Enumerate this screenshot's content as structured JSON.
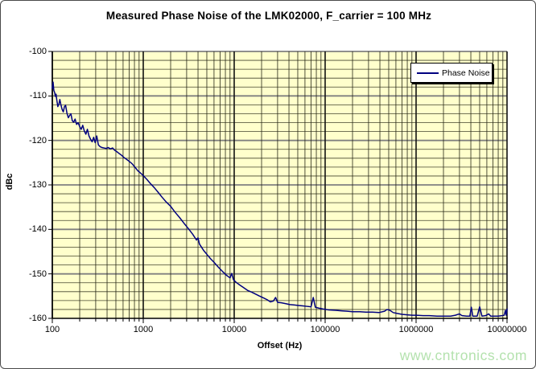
{
  "title": "Measured Phase Noise of the LMK02000, F_carrier = 100 MHz",
  "watermark": {
    "text": "www.cntronics.com",
    "color": "#b4e2ae"
  },
  "legend": {
    "label": "Phase Noise",
    "line_color": "#000080"
  },
  "chart_data": {
    "type": "line",
    "title": "Measured Phase Noise of the LMK02000, F_carrier = 100 MHz",
    "xlabel": "Offset (Hz)",
    "ylabel": "dBc",
    "x_scale": "log",
    "xlim": [
      100,
      10000000
    ],
    "ylim": [
      -160,
      -100
    ],
    "x_ticks": [
      100,
      1000,
      10000,
      100000,
      1000000,
      10000000
    ],
    "y_ticks": [
      -100,
      -110,
      -120,
      -130,
      -140,
      -150,
      -160
    ],
    "y_minor_step": 2,
    "grid": true,
    "legend_position": "top-right-inside",
    "colors": {
      "plot_bg": "#ffffcc",
      "line": "#000080",
      "grid_minor_h": "#45452e",
      "grid_major_h": "#808080",
      "grid_minor_v": "#262616",
      "grid_major_v": "#111111",
      "axis": "#000000"
    },
    "series": [
      {
        "name": "Phase Noise",
        "points": [
          [
            100,
            -108.3
          ],
          [
            102,
            -106.9
          ],
          [
            104,
            -108.8
          ],
          [
            106,
            -109.2
          ],
          [
            108,
            -110.1
          ],
          [
            110,
            -109.6
          ],
          [
            112,
            -110.9
          ],
          [
            115,
            -112.4
          ],
          [
            118,
            -111.9
          ],
          [
            121,
            -110.8
          ],
          [
            124,
            -111.9
          ],
          [
            128,
            -113.0
          ],
          [
            132,
            -113.6
          ],
          [
            136,
            -112.4
          ],
          [
            140,
            -112.1
          ],
          [
            145,
            -113.9
          ],
          [
            150,
            -114.9
          ],
          [
            155,
            -114.4
          ],
          [
            160,
            -114.0
          ],
          [
            166,
            -115.6
          ],
          [
            172,
            -115.9
          ],
          [
            178,
            -115.2
          ],
          [
            185,
            -116.4
          ],
          [
            192,
            -116.0
          ],
          [
            200,
            -116.9
          ],
          [
            208,
            -117.5
          ],
          [
            216,
            -116.6
          ],
          [
            225,
            -117.9
          ],
          [
            234,
            -118.6
          ],
          [
            243,
            -117.5
          ],
          [
            253,
            -119.0
          ],
          [
            263,
            -119.7
          ],
          [
            274,
            -120.3
          ],
          [
            285,
            -119.3
          ],
          [
            296,
            -120.5
          ],
          [
            308,
            -119.0
          ],
          [
            321,
            -121.0
          ],
          [
            335,
            -121.4
          ],
          [
            352,
            -121.6
          ],
          [
            370,
            -121.7
          ],
          [
            390,
            -121.8
          ],
          [
            412,
            -121.6
          ],
          [
            435,
            -121.9
          ],
          [
            460,
            -121.7
          ],
          [
            485,
            -122.2
          ],
          [
            510,
            -122.5
          ],
          [
            540,
            -122.9
          ],
          [
            575,
            -123.3
          ],
          [
            610,
            -123.8
          ],
          [
            650,
            -124.2
          ],
          [
            700,
            -124.7
          ],
          [
            750,
            -125.2
          ],
          [
            810,
            -126.0
          ],
          [
            870,
            -126.8
          ],
          [
            940,
            -127.4
          ],
          [
            1000,
            -127.9
          ],
          [
            1100,
            -128.8
          ],
          [
            1200,
            -129.7
          ],
          [
            1320,
            -130.6
          ],
          [
            1450,
            -131.6
          ],
          [
            1600,
            -132.7
          ],
          [
            1800,
            -133.9
          ],
          [
            2000,
            -134.8
          ],
          [
            2250,
            -136.2
          ],
          [
            2500,
            -137.3
          ],
          [
            2800,
            -138.6
          ],
          [
            3100,
            -139.7
          ],
          [
            3500,
            -141.1
          ],
          [
            3850,
            -142.4
          ],
          [
            4000,
            -141.9
          ],
          [
            4150,
            -143.3
          ],
          [
            4600,
            -144.7
          ],
          [
            5000,
            -145.6
          ],
          [
            5500,
            -146.6
          ],
          [
            6000,
            -147.4
          ],
          [
            6700,
            -148.5
          ],
          [
            7400,
            -149.4
          ],
          [
            8200,
            -150.3
          ],
          [
            9000,
            -150.9
          ],
          [
            9400,
            -149.9
          ],
          [
            9800,
            -151.3
          ],
          [
            10500,
            -151.9
          ],
          [
            11500,
            -152.5
          ],
          [
            12500,
            -153.0
          ],
          [
            14000,
            -153.7
          ],
          [
            15500,
            -154.1
          ],
          [
            17000,
            -154.5
          ],
          [
            19000,
            -155.0
          ],
          [
            21000,
            -155.4
          ],
          [
            23000,
            -155.8
          ],
          [
            25000,
            -156.3
          ],
          [
            27000,
            -156.1
          ],
          [
            28500,
            -155.3
          ],
          [
            30000,
            -156.4
          ],
          [
            33000,
            -156.5
          ],
          [
            37000,
            -156.7
          ],
          [
            41000,
            -156.9
          ],
          [
            46000,
            -157.0
          ],
          [
            51000,
            -157.1
          ],
          [
            57000,
            -157.2
          ],
          [
            63000,
            -157.3
          ],
          [
            70000,
            -157.4
          ],
          [
            74000,
            -155.3
          ],
          [
            78000,
            -157.5
          ],
          [
            85000,
            -157.7
          ],
          [
            95000,
            -157.9
          ],
          [
            110000,
            -158.1
          ],
          [
            130000,
            -158.2
          ],
          [
            150000,
            -158.3
          ],
          [
            175000,
            -158.4
          ],
          [
            200000,
            -158.5
          ],
          [
            240000,
            -158.5
          ],
          [
            280000,
            -158.6
          ],
          [
            330000,
            -158.6
          ],
          [
            390000,
            -158.7
          ],
          [
            450000,
            -158.4
          ],
          [
            480000,
            -158.0
          ],
          [
            515000,
            -158.2
          ],
          [
            560000,
            -158.7
          ],
          [
            620000,
            -158.9
          ],
          [
            700000,
            -159.1
          ],
          [
            800000,
            -159.2
          ],
          [
            900000,
            -159.3
          ],
          [
            1000000,
            -159.3
          ],
          [
            1200000,
            -159.4
          ],
          [
            1400000,
            -159.4
          ],
          [
            1700000,
            -159.5
          ],
          [
            2000000,
            -159.5
          ],
          [
            2400000,
            -159.5
          ],
          [
            2700000,
            -159.3
          ],
          [
            3000000,
            -159.0
          ],
          [
            3200000,
            -159.4
          ],
          [
            3600000,
            -159.5
          ],
          [
            3900000,
            -159.5
          ],
          [
            4050000,
            -157.5
          ],
          [
            4200000,
            -159.5
          ],
          [
            4700000,
            -159.5
          ],
          [
            5000000,
            -157.4
          ],
          [
            5300000,
            -159.5
          ],
          [
            5800000,
            -159.4
          ],
          [
            6300000,
            -159.0
          ],
          [
            6600000,
            -159.5
          ],
          [
            7200000,
            -159.5
          ],
          [
            8000000,
            -159.5
          ],
          [
            8800000,
            -159.4
          ],
          [
            9300000,
            -159.3
          ],
          [
            9600000,
            -158.2
          ],
          [
            9800000,
            -159.3
          ],
          [
            10000000,
            -157.9
          ]
        ]
      }
    ]
  }
}
